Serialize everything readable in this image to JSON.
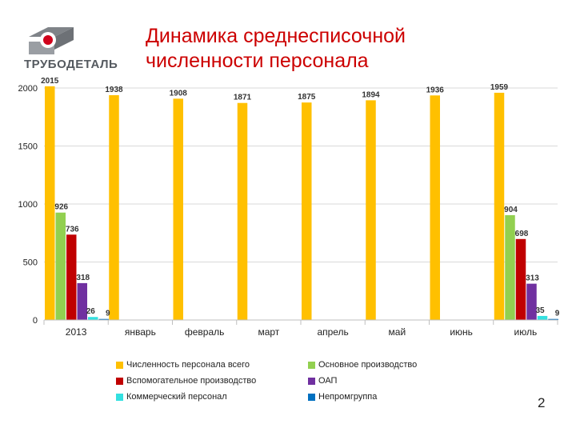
{
  "slide": {
    "logo_text": "ТРУБОДЕТАЛЬ",
    "title_line1": "Динамика среднесписочной",
    "title_line2": "численности персонала",
    "page_number": "2"
  },
  "chart_data": {
    "type": "bar",
    "title": "",
    "xlabel": "",
    "ylabel": "",
    "ylim": [
      0,
      2000
    ],
    "yticks": [
      0,
      500,
      1000,
      1500,
      2000
    ],
    "grid": true,
    "legend_position": "bottom",
    "categories": [
      "2013",
      "январь",
      "февраль",
      "март",
      "апрель",
      "май",
      "июнь",
      "июль"
    ],
    "series": [
      {
        "name": "Численность персонала всего",
        "color": "#ffc000",
        "values": [
          2015,
          1938,
          1908,
          1871,
          1875,
          1894,
          1936,
          1959
        ]
      },
      {
        "name": "Основное производство",
        "color": "#92d050",
        "values": [
          926,
          null,
          null,
          null,
          null,
          null,
          null,
          904
        ]
      },
      {
        "name": "Вспомогательное производство",
        "color": "#c00000",
        "values": [
          736,
          null,
          null,
          null,
          null,
          null,
          null,
          698
        ]
      },
      {
        "name": "ОАП",
        "color": "#7030a0",
        "values": [
          318,
          null,
          null,
          null,
          null,
          null,
          null,
          313
        ]
      },
      {
        "name": "Коммерческий персонал",
        "color": "#33e0e0",
        "values": [
          26,
          null,
          null,
          null,
          null,
          null,
          null,
          35
        ]
      },
      {
        "name": "Непромгруппа",
        "color": "#0070c0",
        "values": [
          9,
          null,
          null,
          null,
          null,
          null,
          null,
          9
        ]
      }
    ]
  }
}
